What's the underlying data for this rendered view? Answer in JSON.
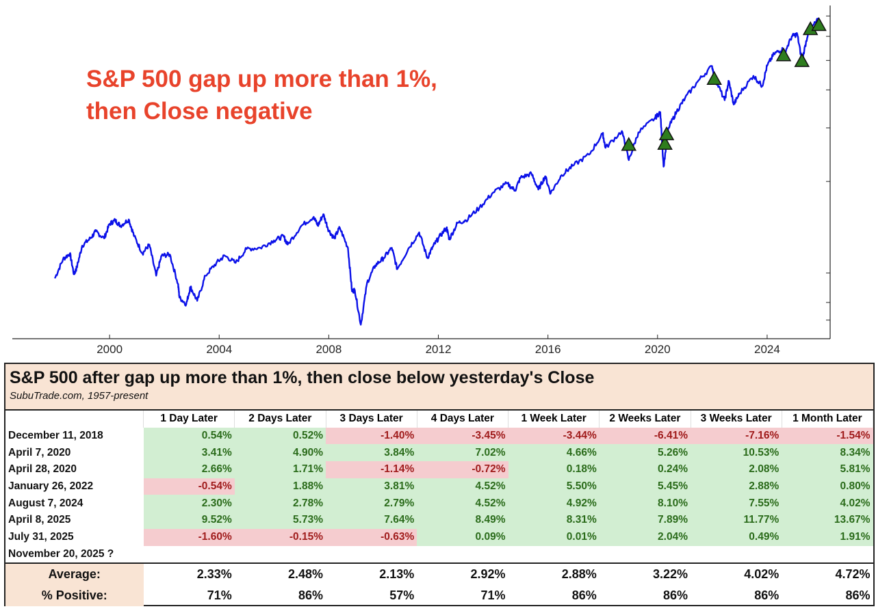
{
  "overlay_title": "S&P 500 gap up more than 1%,\nthen Close negative",
  "chart_data": {
    "type": "line",
    "title": "",
    "xlabel": "",
    "ylabel": "",
    "y_scale": "log",
    "y_tick_labels_shown": false,
    "xlim": [
      1996.45,
      2026.3
    ],
    "ylim": [
      608,
      7580
    ],
    "x_ticks": [
      2000,
      2004,
      2008,
      2012,
      2016,
      2020,
      2024
    ],
    "x_tick_labels": [
      "2000",
      "2004",
      "2008",
      "2012",
      "2016",
      "2020",
      "2024"
    ],
    "grid": false,
    "line_color": "#0a10e8",
    "marker_color": "#2e7d1e",
    "series": [
      {
        "x": [
          1998.0,
          1998.3,
          1998.55,
          1998.7,
          1998.8,
          1999.0,
          1999.3,
          1999.5,
          1999.8,
          2000.0,
          2000.2,
          2000.4,
          2000.7,
          2000.9,
          2001.2,
          2001.45,
          2001.7,
          2001.9,
          2002.2,
          2002.5,
          2002.55,
          2002.8,
          2002.95,
          2003.2,
          2003.5,
          2003.9,
          2004.2,
          2004.6,
          2005.0,
          2005.5,
          2006.0,
          2006.35,
          2006.5,
          2007.0,
          2007.45,
          2007.6,
          2007.8,
          2008.0,
          2008.2,
          2008.4,
          2008.7,
          2008.85,
          2008.95,
          2009.17,
          2009.4,
          2009.7,
          2010.0,
          2010.3,
          2010.5,
          2010.9,
          2011.3,
          2011.6,
          2011.8,
          2012.0,
          2012.3,
          2012.4,
          2012.7,
          2013.0,
          2013.5,
          2014.0,
          2014.5,
          2014.8,
          2015.0,
          2015.4,
          2015.65,
          2015.9,
          2016.1,
          2016.5,
          2016.9,
          2017.5,
          2018.0,
          2018.1,
          2018.7,
          2018.95,
          2019.3,
          2019.9,
          2020.1,
          2020.22,
          2020.4,
          2020.7,
          2021.0,
          2021.5,
          2021.99,
          2022.1,
          2022.45,
          2022.6,
          2022.78,
          2023.0,
          2023.5,
          2023.82,
          2024.0,
          2024.25,
          2024.55,
          2024.6,
          2024.9,
          2025.1,
          2025.27,
          2025.5,
          2025.85,
          2025.89
        ],
        "y": [
          960,
          1110,
          1160,
          990,
          1040,
          1230,
          1300,
          1370,
          1300,
          1450,
          1490,
          1430,
          1500,
          1320,
          1160,
          1240,
          980,
          1140,
          1150,
          920,
          830,
          790,
          900,
          810,
          980,
          1080,
          1140,
          1080,
          1200,
          1210,
          1280,
          1320,
          1240,
          1430,
          1530,
          1430,
          1560,
          1380,
          1300,
          1410,
          1210,
          870,
          880,
          676,
          930,
          1060,
          1120,
          1210,
          1030,
          1200,
          1360,
          1120,
          1220,
          1300,
          1410,
          1290,
          1460,
          1490,
          1640,
          1840,
          1970,
          1870,
          2060,
          2120,
          1880,
          2080,
          1830,
          2100,
          2250,
          2450,
          2870,
          2580,
          2930,
          2350,
          2900,
          3230,
          3380,
          2237,
          3000,
          3400,
          3750,
          4300,
          4790,
          4350,
          3700,
          4280,
          3580,
          3900,
          4450,
          4120,
          4800,
          5250,
          5450,
          5190,
          6000,
          6100,
          4980,
          6200,
          6800,
          6540
        ]
      }
    ],
    "signals": {
      "x": [
        2018.95,
        2020.27,
        2020.33,
        2022.07,
        2024.6,
        2025.27,
        2025.58,
        2025.89
      ],
      "y": [
        2640,
        2660,
        2860,
        4350,
        5200,
        4980,
        6340,
        6540
      ]
    }
  },
  "table": {
    "title": "S&P 500 after gap up more than 1%, then close below yesterday's Close",
    "subtitle": "SubuTrade.com, 1957-present",
    "columns": [
      "1 Day Later",
      "2 Days Later",
      "3 Days Later",
      "4 Days Later",
      "1 Week Later",
      "2 Weeks Later",
      "3 Weeks Later",
      "1 Month Later"
    ],
    "rows": [
      {
        "date": "December 11, 2018",
        "values": [
          "0.54%",
          "0.52%",
          "-1.40%",
          "-3.45%",
          "-3.44%",
          "-6.41%",
          "-7.16%",
          "-1.54%"
        ]
      },
      {
        "date": "April 7, 2020",
        "values": [
          "3.41%",
          "4.90%",
          "3.84%",
          "7.02%",
          "4.66%",
          "5.26%",
          "10.53%",
          "8.34%"
        ]
      },
      {
        "date": "April 28, 2020",
        "values": [
          "2.66%",
          "1.71%",
          "-1.14%",
          "-0.72%",
          "0.18%",
          "0.24%",
          "2.08%",
          "5.81%"
        ]
      },
      {
        "date": "January 26, 2022",
        "values": [
          "-0.54%",
          "1.88%",
          "3.81%",
          "4.52%",
          "5.50%",
          "5.45%",
          "2.88%",
          "0.80%"
        ]
      },
      {
        "date": "August 7, 2024",
        "values": [
          "2.30%",
          "2.78%",
          "2.79%",
          "4.52%",
          "4.92%",
          "8.10%",
          "7.55%",
          "4.02%"
        ]
      },
      {
        "date": "April 8, 2025",
        "values": [
          "9.52%",
          "5.73%",
          "7.64%",
          "8.49%",
          "8.31%",
          "7.89%",
          "11.77%",
          "13.67%"
        ]
      },
      {
        "date": "July 31, 2025",
        "values": [
          "-1.60%",
          "-0.15%",
          "-0.63%",
          "0.09%",
          "0.01%",
          "2.04%",
          "0.49%",
          "1.91%"
        ]
      },
      {
        "date": "November 20, 2025 ?",
        "values": [
          "",
          "",
          "",
          "",
          "",
          "",
          "",
          ""
        ]
      }
    ],
    "average": {
      "label": "Average:",
      "values": [
        "2.33%",
        "2.48%",
        "2.13%",
        "2.92%",
        "2.88%",
        "3.22%",
        "4.02%",
        "4.72%"
      ]
    },
    "positive": {
      "label": "% Positive:",
      "values": [
        "71%",
        "86%",
        "57%",
        "71%",
        "86%",
        "86%",
        "86%",
        "86%"
      ]
    },
    "colors": {
      "positive_bg": "#d2eed2",
      "positive_text": "#2a6b1a",
      "negative_bg": "#f5cccf",
      "negative_text": "#a01c1c",
      "header_bg": "#f9e4d4"
    }
  }
}
